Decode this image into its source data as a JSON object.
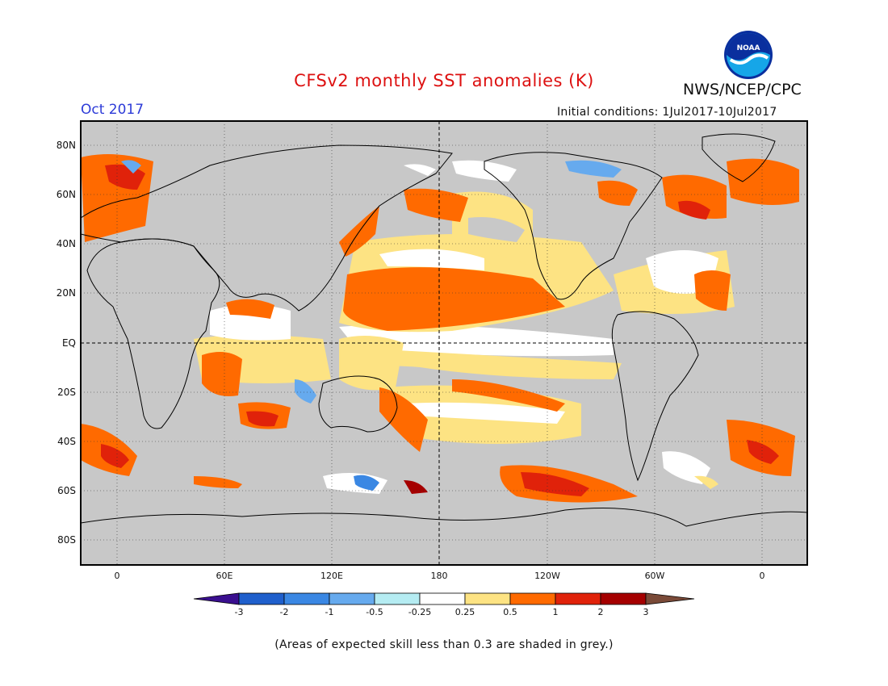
{
  "map": {
    "title": "CFSv2 monthly SST anomalies (K)",
    "organization": "NWS/NCEP/CPC",
    "logo_text": "NOAA",
    "period": "Oct 2017",
    "initial_conditions": "Initial conditions: 1Jul2017-10Jul2017",
    "footnote": "(Areas of expected skill less than 0.3 are shaded in grey.)",
    "lat_labels": [
      "80N",
      "60N",
      "40N",
      "20N",
      "EQ",
      "20S",
      "40S",
      "60S",
      "80S"
    ],
    "lon_labels": [
      "0",
      "60E",
      "120E",
      "180",
      "120W",
      "60W",
      "0"
    ],
    "colorbar": {
      "labels": [
        "-3",
        "-2",
        "-1",
        "-0.5",
        "-0.25",
        "0.25",
        "0.5",
        "1",
        "2",
        "3"
      ],
      "colors": [
        "#3a0f8f",
        "#1f5fcc",
        "#3a87e3",
        "#66aaee",
        "#b5ecf2",
        "#ffffff",
        "#fde383",
        "#ff6a00",
        "#e0220a",
        "#a50000",
        "#7a4a38"
      ]
    },
    "colors": {
      "land": "#c8c8c8",
      "title": "#dd1111",
      "period": "#2d3bd8"
    }
  }
}
